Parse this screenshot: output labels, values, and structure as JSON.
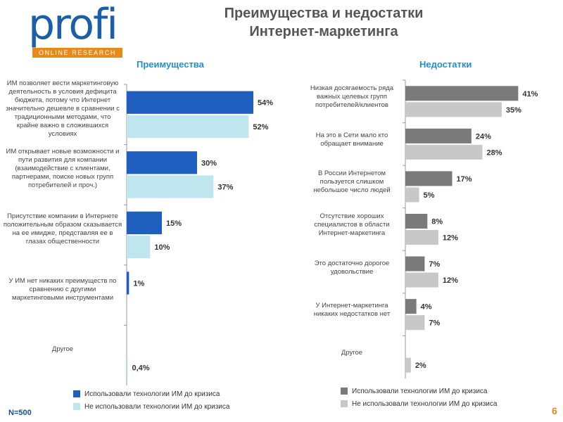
{
  "logo": {
    "main": "profi",
    "sub": "ONLINE RESEARCH"
  },
  "title": {
    "line1": "Преимущества и недостатки",
    "line2": "Интернет-маркетинга"
  },
  "footer": {
    "n": "N=500",
    "page": "6"
  },
  "chart_data": [
    {
      "type": "bar",
      "orientation": "horizontal",
      "title": "Преимущества",
      "categories": [
        "ИМ позволяет вести маркетинговую деятельность в условия дефицита бюджета, потому что Интернет значительно дешевле в сравнении с традиционными методами, что крайне важно в сложившихся условиях",
        "ИМ открывает новые возможности и пути развития для компании (взаимодействие с клиентами, партнерами, поиске новых групп потребителей и проч.)",
        "Присутствие компании в Интернете положительным образом сказывается на ее имидже, представляя ее в глазах общественности",
        "У ИМ нет никаких преимуществ по сравнению с другими маркетинговыми инструментами",
        "Другое"
      ],
      "series": [
        {
          "name": "Использовали технологии ИМ до кризиса",
          "values": [
            54,
            30,
            15,
            1,
            null
          ],
          "labels": [
            "54%",
            "30%",
            "15%",
            "1%",
            ""
          ],
          "color": "#1f5fbf"
        },
        {
          "name": "Не использовали технологии ИМ до кризиса",
          "values": [
            52,
            37,
            10,
            null,
            0.4
          ],
          "labels": [
            "52%",
            "37%",
            "10%",
            "",
            "0,4%"
          ],
          "color": "#bfe6ee"
        }
      ],
      "xlim": [
        0,
        60
      ]
    },
    {
      "type": "bar",
      "orientation": "horizontal",
      "title": "Недостатки",
      "categories": [
        "Низкая досягаемость ряда важных целевых групп потребителей/клиентов",
        "На это в Сети мало кто обращает внимание",
        "В России Интернетом пользуется слишком небольшое число людей",
        "Отсутствие хороших специалистов в области Интернет-маркетинга",
        "Это достаточно дорогое удовольствие",
        "У Интернет-маркетинга никаких недостатков нет",
        "Другое"
      ],
      "series": [
        {
          "name": "Использовали технологии ИМ до кризиса",
          "values": [
            41,
            24,
            17,
            8,
            7,
            4,
            null
          ],
          "labels": [
            "41%",
            "24%",
            "17%",
            "8%",
            "7%",
            "4%",
            ""
          ],
          "color": "#7a7a7a"
        },
        {
          "name": "Не использовали технологии ИМ до кризиса",
          "values": [
            35,
            28,
            5,
            12,
            12,
            7,
            2
          ],
          "labels": [
            "35%",
            "28%",
            "5%",
            "12%",
            "12%",
            "7%",
            "2%"
          ],
          "color": "#c8c8c8"
        }
      ],
      "xlim": [
        0,
        45
      ]
    }
  ]
}
